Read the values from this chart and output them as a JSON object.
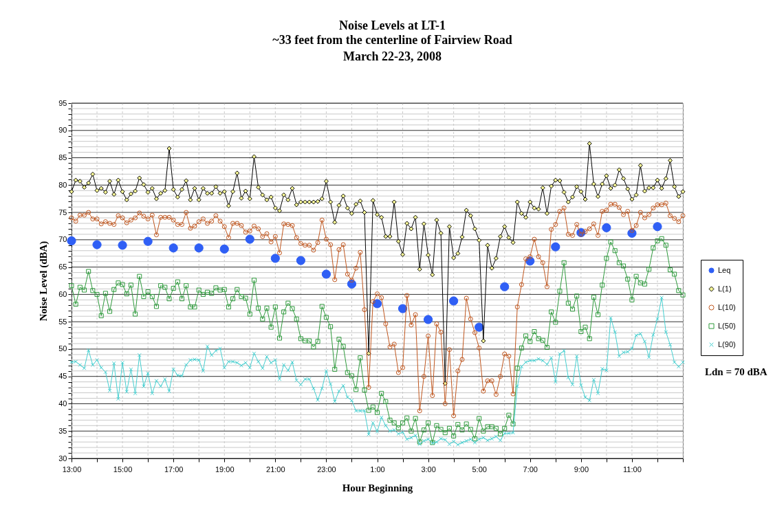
{
  "chart_data": {
    "type": "line",
    "title": "Noise Levels at LT-1",
    "subtitle": "~33 feet from the centerline of Fairview Road\nMarch 22-23, 2008",
    "xlabel": "Hour Beginning",
    "ylabel": "Noise Level (dBA)",
    "annotations": [
      "Ldn = 70 dBA"
    ],
    "grid": true,
    "legend": "right",
    "xlim": [
      "2008-03-22T13:00",
      "2008-03-23T13:00"
    ],
    "xticks": [
      {
        "value": "2008-03-22T13:00",
        "label": "13:00"
      },
      {
        "value": "2008-03-22T14:00",
        "label": null
      },
      {
        "value": "2008-03-22T15:00",
        "label": "15:00"
      },
      {
        "value": "2008-03-22T16:00",
        "label": null
      },
      {
        "value": "2008-03-22T17:00",
        "label": "17:00"
      },
      {
        "value": "2008-03-22T18:00",
        "label": null
      },
      {
        "value": "2008-03-22T19:00",
        "label": "19:00"
      },
      {
        "value": "2008-03-22T20:00",
        "label": null
      },
      {
        "value": "2008-03-22T21:00",
        "label": "21:00"
      },
      {
        "value": "2008-03-22T22:00",
        "label": null
      },
      {
        "value": "2008-03-22T23:00",
        "label": "23:00"
      },
      {
        "value": "2008-03-23T00:00",
        "label": null
      },
      {
        "value": "2008-03-23T01:00",
        "label": "1:00"
      },
      {
        "value": "2008-03-23T02:00",
        "label": null
      },
      {
        "value": "2008-03-23T03:00",
        "label": "3:00"
      },
      {
        "value": "2008-03-23T04:00",
        "label": null
      },
      {
        "value": "2008-03-23T05:00",
        "label": "5:00"
      },
      {
        "value": "2008-03-23T06:00",
        "label": null
      },
      {
        "value": "2008-03-23T07:00",
        "label": "7:00"
      },
      {
        "value": "2008-03-23T08:00",
        "label": null
      },
      {
        "value": "2008-03-23T09:00",
        "label": "9:00"
      },
      {
        "value": "2008-03-23T10:00",
        "label": null
      },
      {
        "value": "2008-03-23T11:00",
        "label": "11:00"
      },
      {
        "value": "2008-03-23T12:00",
        "label": null
      },
      {
        "value": "2008-03-23T13:00",
        "label": null
      }
    ],
    "ylim": [
      30,
      95
    ],
    "yticks": [
      30,
      {
        "value": 31,
        "label": null
      },
      {
        "value": 32,
        "label": null
      },
      {
        "value": 33,
        "label": null
      },
      {
        "value": 34,
        "label": null
      },
      35,
      {
        "value": 36,
        "label": null
      },
      {
        "value": 37,
        "label": null
      },
      {
        "value": 38,
        "label": null
      },
      {
        "value": 39,
        "label": null
      },
      40,
      {
        "value": 41,
        "label": null
      },
      {
        "value": 42,
        "label": null
      },
      {
        "value": 43,
        "label": null
      },
      {
        "value": 44,
        "label": null
      },
      45,
      {
        "value": 46,
        "label": null
      },
      {
        "value": 47,
        "label": null
      },
      {
        "value": 48,
        "label": null
      },
      {
        "value": 49,
        "label": null
      },
      50,
      {
        "value": 51,
        "label": null
      },
      {
        "value": 52,
        "label": null
      },
      {
        "value": 53,
        "label": null
      },
      {
        "value": 54,
        "label": null
      },
      55,
      {
        "value": 56,
        "label": null
      },
      {
        "value": 57,
        "label": null
      },
      {
        "value": 58,
        "label": null
      },
      {
        "value": 59,
        "label": null
      },
      60,
      {
        "value": 61,
        "label": null
      },
      {
        "value": 62,
        "label": null
      },
      {
        "value": 63,
        "label": null
      },
      {
        "value": 64,
        "label": null
      },
      65,
      {
        "value": 66,
        "label": null
      },
      {
        "value": 67,
        "label": null
      },
      {
        "value": 68,
        "label": null
      },
      {
        "value": 69,
        "label": null
      },
      70,
      {
        "value": 71,
        "label": null
      },
      {
        "value": 72,
        "label": null
      },
      {
        "value": 73,
        "label": null
      },
      {
        "value": 74,
        "label": null
      },
      75,
      {
        "value": 76,
        "label": null
      },
      {
        "value": 77,
        "label": null
      },
      {
        "value": 78,
        "label": null
      },
      {
        "value": 79,
        "label": null
      },
      80,
      {
        "value": 81,
        "label": null
      },
      {
        "value": 82,
        "label": null
      },
      {
        "value": 83,
        "label": null
      },
      {
        "value": 84,
        "label": null
      },
      85,
      {
        "value": 86,
        "label": null
      },
      {
        "value": 87,
        "label": null
      },
      {
        "value": 88,
        "label": null
      },
      {
        "value": 89,
        "label": null
      },
      90,
      {
        "value": 91,
        "label": null
      },
      {
        "value": 92,
        "label": null
      },
      {
        "value": 93,
        "label": null
      },
      {
        "value": 94,
        "label": null
      },
      95
    ],
    "x": [
      "2008-03-22T13:00",
      "2008-03-22T13:10",
      "2008-03-22T13:20",
      "2008-03-22T13:30",
      "2008-03-22T13:40",
      "2008-03-22T13:50",
      "2008-03-22T14:00",
      "2008-03-22T14:10",
      "2008-03-22T14:20",
      "2008-03-22T14:30",
      "2008-03-22T14:40",
      "2008-03-22T14:50",
      "2008-03-22T15:00",
      "2008-03-22T15:10",
      "2008-03-22T15:20",
      "2008-03-22T15:30",
      "2008-03-22T15:40",
      "2008-03-22T15:50",
      "2008-03-22T16:00",
      "2008-03-22T16:10",
      "2008-03-22T16:20",
      "2008-03-22T16:30",
      "2008-03-22T16:40",
      "2008-03-22T16:50",
      "2008-03-22T17:00",
      "2008-03-22T17:10",
      "2008-03-22T17:20",
      "2008-03-22T17:30",
      "2008-03-22T17:40",
      "2008-03-22T17:50",
      "2008-03-22T18:00",
      "2008-03-22T18:10",
      "2008-03-22T18:20",
      "2008-03-22T18:30",
      "2008-03-22T18:40",
      "2008-03-22T18:50",
      "2008-03-22T19:00",
      "2008-03-22T19:10",
      "2008-03-22T19:20",
      "2008-03-22T19:30",
      "2008-03-22T19:40",
      "2008-03-22T19:50",
      "2008-03-22T20:00",
      "2008-03-22T20:10",
      "2008-03-22T20:20",
      "2008-03-22T20:30",
      "2008-03-22T20:40",
      "2008-03-22T20:50",
      "2008-03-22T21:00",
      "2008-03-22T21:10",
      "2008-03-22T21:20",
      "2008-03-22T21:30",
      "2008-03-22T21:40",
      "2008-03-22T21:50",
      "2008-03-22T22:00",
      "2008-03-22T22:10",
      "2008-03-22T22:20",
      "2008-03-22T22:30",
      "2008-03-22T22:40",
      "2008-03-22T22:50",
      "2008-03-22T23:00",
      "2008-03-22T23:10",
      "2008-03-22T23:20",
      "2008-03-22T23:30",
      "2008-03-22T23:40",
      "2008-03-22T23:50",
      "2008-03-23T00:00",
      "2008-03-23T00:10",
      "2008-03-23T00:20",
      "2008-03-23T00:30",
      "2008-03-23T00:40",
      "2008-03-23T00:50",
      "2008-03-23T01:00",
      "2008-03-23T01:10",
      "2008-03-23T01:20",
      "2008-03-23T01:30",
      "2008-03-23T01:40",
      "2008-03-23T01:50",
      "2008-03-23T02:00",
      "2008-03-23T02:10",
      "2008-03-23T02:20",
      "2008-03-23T02:30",
      "2008-03-23T02:40",
      "2008-03-23T02:50",
      "2008-03-23T03:00",
      "2008-03-23T03:10",
      "2008-03-23T03:20",
      "2008-03-23T03:30",
      "2008-03-23T03:40",
      "2008-03-23T03:50",
      "2008-03-23T04:00",
      "2008-03-23T04:10",
      "2008-03-23T04:20",
      "2008-03-23T04:30",
      "2008-03-23T04:40",
      "2008-03-23T04:50",
      "2008-03-23T05:00",
      "2008-03-23T05:10",
      "2008-03-23T05:20",
      "2008-03-23T05:30",
      "2008-03-23T05:40",
      "2008-03-23T05:50",
      "2008-03-23T06:00",
      "2008-03-23T06:10",
      "2008-03-23T06:20",
      "2008-03-23T06:30",
      "2008-03-23T06:40",
      "2008-03-23T06:50",
      "2008-03-23T07:00",
      "2008-03-23T07:10",
      "2008-03-23T07:20",
      "2008-03-23T07:30",
      "2008-03-23T07:40",
      "2008-03-23T07:50",
      "2008-03-23T08:00",
      "2008-03-23T08:10",
      "2008-03-23T08:20",
      "2008-03-23T08:30",
      "2008-03-23T08:40",
      "2008-03-23T08:50",
      "2008-03-23T09:00",
      "2008-03-23T09:10",
      "2008-03-23T09:20",
      "2008-03-23T09:30",
      "2008-03-23T09:40",
      "2008-03-23T09:50",
      "2008-03-23T10:00",
      "2008-03-23T10:10",
      "2008-03-23T10:20",
      "2008-03-23T10:30",
      "2008-03-23T10:40",
      "2008-03-23T10:50",
      "2008-03-23T11:00",
      "2008-03-23T11:10",
      "2008-03-23T11:20",
      "2008-03-23T11:30",
      "2008-03-23T11:40",
      "2008-03-23T11:50",
      "2008-03-23T12:00",
      "2008-03-23T12:10",
      "2008-03-23T12:20",
      "2008-03-23T12:30",
      "2008-03-23T12:40",
      "2008-03-23T12:50",
      "2008-03-23T13:00"
    ],
    "series": [
      {
        "name": "Leq",
        "type": "scatter",
        "marker": "circle",
        "color": "#2f5ff5",
        "x": [
          "2008-03-22T13:00",
          "2008-03-22T14:00",
          "2008-03-22T15:00",
          "2008-03-22T16:00",
          "2008-03-22T17:00",
          "2008-03-22T18:00",
          "2008-03-22T19:00",
          "2008-03-22T20:00",
          "2008-03-22T21:00",
          "2008-03-22T22:00",
          "2008-03-22T23:00",
          "2008-03-23T00:00",
          "2008-03-23T01:00",
          "2008-03-23T02:00",
          "2008-03-23T03:00",
          "2008-03-23T04:00",
          "2008-03-23T05:00",
          "2008-03-23T06:00",
          "2008-03-23T07:00",
          "2008-03-23T08:00",
          "2008-03-23T09:00",
          "2008-03-23T10:00",
          "2008-03-23T11:00",
          "2008-03-23T12:00"
        ],
        "values": [
          69.8,
          69.1,
          69.0,
          69.7,
          68.5,
          68.5,
          68.3,
          70.1,
          66.6,
          66.2,
          63.7,
          61.9,
          58.3,
          57.4,
          55.4,
          58.8,
          54.0,
          61.4,
          66.1,
          68.7,
          71.3,
          72.2,
          71.2,
          72.4
        ]
      },
      {
        "name": "L(1)",
        "marker": "diamond",
        "color": "#000000",
        "values": [
          78.8,
          80.9,
          80.7,
          79.6,
          80.4,
          82.0,
          79.0,
          79.4,
          78.7,
          80.7,
          78.3,
          80.9,
          78.8,
          77.3,
          78.4,
          78.9,
          81.3,
          80.1,
          78.7,
          79.4,
          77.5,
          78.5,
          79.0,
          86.7,
          79.2,
          77.8,
          79.2,
          80.8,
          77.3,
          79.4,
          77.3,
          79.4,
          78.5,
          78.5,
          79.7,
          78.5,
          78.8,
          76.2,
          78.8,
          82.2,
          77.6,
          78.9,
          77.5,
          85.2,
          79.6,
          78.2,
          77.3,
          77.8,
          75.8,
          75.3,
          78.2,
          77.3,
          79.4,
          76.4,
          76.9,
          76.9,
          76.9,
          76.9,
          77.0,
          77.5,
          80.7,
          76.9,
          73.2,
          76.3,
          78.0,
          75.8,
          74.8,
          76.5,
          77.1,
          75.0,
          49.2,
          77.2,
          74.6,
          74.1,
          70.6,
          70.6,
          76.9,
          69.7,
          67.3,
          73.0,
          72.0,
          74.1,
          64.6,
          72.9,
          67.2,
          63.6,
          73.6,
          71.2,
          43.7,
          72.4,
          66.7,
          67.5,
          70.5,
          75.4,
          74.4,
          72.0,
          69.9,
          51.5,
          69.0,
          64.8,
          66.6,
          70.6,
          72.4,
          70.4,
          69.5,
          76.9,
          74.8,
          74.1,
          76.9,
          75.8,
          75.6,
          79.5,
          74.8,
          79.8,
          80.9,
          80.8,
          78.7,
          76.9,
          77.8,
          79.7,
          78.8,
          77.4,
          87.6,
          80.2,
          77.9,
          80.2,
          81.7,
          79.4,
          80.0,
          82.8,
          81.2,
          79.3,
          77.4,
          78.2,
          83.6,
          78.9,
          79.5,
          79.5,
          80.9,
          79.4,
          81.2,
          84.5,
          79.7,
          77.9,
          78.8
        ]
      },
      {
        "name": "L(10)",
        "marker": "circle",
        "color": "#c0561e",
        "values": [
          74.0,
          73.4,
          74.5,
          74.5,
          75.0,
          73.8,
          73.8,
          72.9,
          73.3,
          73.0,
          72.8,
          74.4,
          74.0,
          73.1,
          73.6,
          74.0,
          74.9,
          74.3,
          73.8,
          74.5,
          70.9,
          74.1,
          74.1,
          74.1,
          73.6,
          72.8,
          72.8,
          75.0,
          72.1,
          72.5,
          73.3,
          73.8,
          73.0,
          73.4,
          74.4,
          73.4,
          72.4,
          70.4,
          73.0,
          73.0,
          72.6,
          71.4,
          71.6,
          72.5,
          72.0,
          70.6,
          71.1,
          69.6,
          70.6,
          67.6,
          72.9,
          72.8,
          72.6,
          70.4,
          69.3,
          69.0,
          69.0,
          68.1,
          69.5,
          73.6,
          70.1,
          69.1,
          62.7,
          68.2,
          69.1,
          63.7,
          62.6,
          64.8,
          67.7,
          57.2,
          43.0,
          58.7,
          60.1,
          59.4,
          54.6,
          50.4,
          50.9,
          45.7,
          46.6,
          59.8,
          54.4,
          56.3,
          38.7,
          45.0,
          52.4,
          41.5,
          54.6,
          53.1,
          40.0,
          49.9,
          37.8,
          46.0,
          48.1,
          59.3,
          55.5,
          53.0,
          50.2,
          42.3,
          44.2,
          44.2,
          41.7,
          45.0,
          49.1,
          48.7,
          41.8,
          57.7,
          61.8,
          66.5,
          66.9,
          70.1,
          66.9,
          65.8,
          61.4,
          71.9,
          72.8,
          75.2,
          75.8,
          71.0,
          70.8,
          72.8,
          71.0,
          71.5,
          72.0,
          72.9,
          70.8,
          75.2,
          75.4,
          76.5,
          76.5,
          75.9,
          74.6,
          75.2,
          71.7,
          72.6,
          75.0,
          74.0,
          74.6,
          75.8,
          76.4,
          76.4,
          76.7,
          74.4,
          73.9,
          73.3,
          74.4
        ]
      },
      {
        "name": "L(50)",
        "marker": "square",
        "color": "#2e9a3c",
        "values": [
          61.6,
          58.2,
          61.3,
          60.8,
          64.2,
          60.7,
          60.0,
          56.1,
          60.2,
          56.9,
          60.9,
          62.1,
          61.8,
          60.1,
          61.7,
          56.4,
          63.3,
          59.6,
          60.5,
          59.6,
          57.8,
          61.6,
          61.3,
          59.2,
          61.1,
          62.3,
          59.2,
          61.6,
          57.7,
          57.7,
          60.8,
          60.0,
          60.4,
          60.2,
          61.2,
          60.8,
          60.9,
          57.7,
          59.2,
          60.9,
          59.6,
          59.3,
          56.4,
          62.6,
          57.5,
          55.5,
          57.5,
          54.0,
          57.7,
          52.0,
          56.8,
          58.4,
          57.4,
          55.5,
          51.9,
          51.5,
          51.5,
          50.4,
          51.4,
          57.8,
          55.8,
          54.1,
          46.3,
          51.8,
          50.5,
          45.7,
          45.1,
          42.6,
          48.4,
          42.5,
          38.8,
          39.4,
          38.4,
          41.9,
          40.4,
          37.0,
          36.5,
          35.6,
          36.5,
          37.4,
          35.0,
          37.3,
          33.0,
          35.2,
          36.5,
          32.9,
          36.0,
          35.3,
          34.7,
          35.5,
          34.1,
          36.2,
          35.2,
          36.3,
          35.3,
          33.6,
          37.3,
          35.0,
          35.8,
          35.8,
          35.5,
          34.5,
          35.5,
          37.9,
          36.3,
          46.5,
          50.2,
          52.4,
          51.4,
          53.2,
          51.9,
          51.6,
          50.3,
          56.8,
          54.9,
          60.6,
          65.8,
          58.4,
          57.3,
          59.7,
          53.2,
          54.0,
          51.9,
          59.5,
          56.3,
          61.7,
          66.6,
          69.6,
          68.0,
          65.8,
          65.2,
          62.8,
          59.0,
          63.3,
          62.1,
          61.9,
          64.6,
          68.5,
          69.8,
          70.2,
          69.0,
          64.5,
          63.7,
          60.7,
          59.9
        ]
      },
      {
        "name": "L(90)",
        "marker": "cross",
        "color": "#45cfd0",
        "values": [
          47.6,
          47.7,
          47.1,
          46.5,
          49.8,
          47.1,
          48.0,
          46.6,
          45.8,
          42.4,
          47.4,
          40.9,
          47.5,
          42.2,
          46.3,
          41.9,
          48.9,
          43.2,
          45.6,
          41.9,
          44.2,
          43.2,
          44.5,
          42.3,
          46.3,
          45.2,
          45.1,
          47.1,
          48.0,
          48.1,
          48.0,
          46.0,
          50.5,
          48.9,
          49.7,
          50.1,
          46.6,
          47.7,
          47.7,
          47.5,
          47.0,
          47.5,
          46.6,
          49.2,
          47.7,
          46.5,
          48.6,
          47.5,
          48.0,
          44.5,
          47.1,
          46.1,
          47.6,
          44.3,
          43.5,
          44.5,
          44.5,
          42.8,
          40.7,
          42.8,
          46.0,
          43.6,
          40.4,
          42.3,
          43.3,
          41.2,
          40.6,
          38.7,
          38.7,
          38.7,
          34.4,
          36.5,
          34.9,
          37.5,
          36.0,
          35.0,
          35.2,
          34.5,
          34.8,
          33.5,
          33.8,
          34.2,
          32.6,
          33.2,
          33.5,
          32.8,
          33.0,
          33.6,
          33.4,
          32.6,
          33.1,
          32.5,
          32.9,
          33.2,
          33.5,
          32.9,
          33.5,
          33.8,
          33.3,
          33.6,
          34.0,
          33.3,
          34.6,
          34.6,
          34.7,
          43.2,
          46.8,
          47.6,
          47.9,
          47.9,
          48.2,
          47.9,
          47.2,
          48.4,
          44.0,
          49.1,
          49.7,
          44.8,
          43.5,
          48.7,
          43.4,
          41.2,
          40.6,
          44.4,
          41.9,
          46.4,
          46.1,
          55.7,
          53.1,
          48.7,
          49.4,
          49.5,
          50.1,
          52.5,
          52.8,
          51.4,
          48.5,
          52.6,
          55.5,
          59.4,
          53.1,
          50.8,
          47.6,
          46.8,
          47.6
        ]
      }
    ]
  }
}
